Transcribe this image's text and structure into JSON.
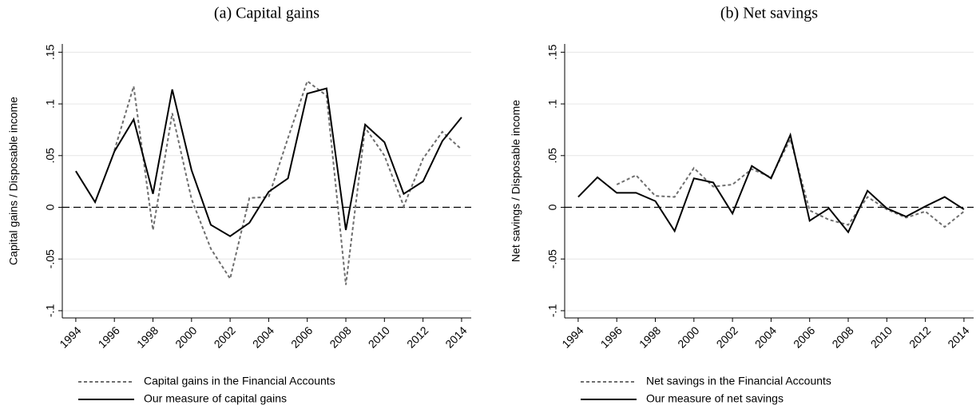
{
  "chart_data": [
    {
      "type": "line",
      "title": "(a) Capital gains",
      "ylabel": "Capital gains / Disposable income",
      "x": [
        1994,
        1995,
        1996,
        1997,
        1998,
        1999,
        2000,
        2001,
        2002,
        2003,
        2004,
        2005,
        2006,
        2007,
        2008,
        2009,
        2010,
        2011,
        2012,
        2013,
        2014
      ],
      "series": [
        {
          "name": "Capital gains in the Financial Accounts",
          "color": "#6e6e6e",
          "style": "dashed",
          "values": [
            null,
            null,
            0.055,
            0.117,
            -0.022,
            0.091,
            0.008,
            -0.04,
            -0.069,
            0.009,
            0.01,
            0.067,
            0.122,
            0.108,
            -0.075,
            0.077,
            0.05,
            0.001,
            0.047,
            0.073,
            0.056
          ]
        },
        {
          "name": "Our measure of capital gains",
          "color": "#000000",
          "style": "solid",
          "values": [
            0.035,
            0.005,
            0.054,
            0.085,
            0.013,
            0.114,
            0.036,
            -0.017,
            -0.028,
            -0.015,
            0.015,
            0.028,
            0.11,
            0.115,
            -0.022,
            0.08,
            0.063,
            0.013,
            0.025,
            0.064,
            0.087
          ]
        }
      ],
      "xlim": [
        1993.3,
        2014.5
      ],
      "xticks": [
        1994,
        1996,
        1998,
        2000,
        2002,
        2004,
        2006,
        2008,
        2010,
        2012,
        2014
      ],
      "ylim": [
        -0.107,
        0.158
      ],
      "yticks": [
        {
          "value": -0.1,
          "label": "-.1"
        },
        {
          "value": -0.05,
          "label": "-.05"
        },
        0,
        {
          "value": 0.05,
          "label": ".05"
        },
        {
          "value": 0.1,
          "label": ".1"
        },
        {
          "value": 0.15,
          "label": ".15"
        }
      ],
      "reference_line": 0,
      "grid": true,
      "legend": "bottom"
    },
    {
      "type": "line",
      "title": "(b) Net savings",
      "ylabel": "Net savings / Disposable income",
      "x": [
        1994,
        1995,
        1996,
        1997,
        1998,
        1999,
        2000,
        2001,
        2002,
        2003,
        2004,
        2005,
        2006,
        2007,
        2008,
        2009,
        2010,
        2011,
        2012,
        2013,
        2014
      ],
      "series": [
        {
          "name": "Net savings in the Financial Accounts",
          "color": "#6e6e6e",
          "style": "dashed",
          "values": [
            null,
            null,
            0.022,
            0.031,
            0.011,
            0.01,
            0.038,
            0.02,
            0.022,
            0.037,
            0.029,
            0.066,
            -0.003,
            -0.012,
            -0.017,
            0.01,
            -0.002,
            -0.01,
            -0.004,
            -0.019,
            -0.004
          ]
        },
        {
          "name": "Our measure of net savings",
          "color": "#000000",
          "style": "solid",
          "values": [
            0.01,
            0.029,
            0.014,
            0.014,
            0.006,
            -0.023,
            0.028,
            0.024,
            -0.006,
            0.04,
            0.028,
            0.07,
            -0.013,
            -0.001,
            -0.024,
            0.016,
            -0.001,
            -0.009,
            0.001,
            0.01,
            -0.002
          ]
        }
      ],
      "xlim": [
        1993.3,
        2014.5
      ],
      "xticks": [
        1994,
        1996,
        1998,
        2000,
        2002,
        2004,
        2006,
        2008,
        2010,
        2012,
        2014
      ],
      "ylim": [
        -0.107,
        0.158
      ],
      "yticks": [
        {
          "value": -0.1,
          "label": "-.1"
        },
        {
          "value": -0.05,
          "label": "-.05"
        },
        0,
        {
          "value": 0.05,
          "label": ".05"
        },
        {
          "value": 0.1,
          "label": ".1"
        },
        {
          "value": 0.15,
          "label": ".15"
        }
      ],
      "reference_line": 0,
      "grid": true,
      "legend": "bottom"
    }
  ]
}
